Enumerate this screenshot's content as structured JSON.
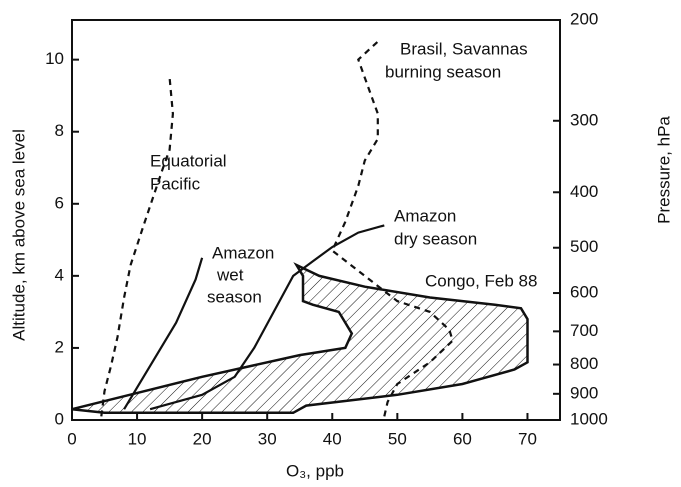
{
  "chart_data": {
    "type": "line",
    "xlabel": "O₃,  ppb",
    "ylabel": "Altitude,  km above sea level",
    "y2label": "Pressure,  hPa",
    "xlim": [
      0,
      75
    ],
    "xticks": [
      0,
      10,
      20,
      30,
      40,
      50,
      60,
      70
    ],
    "ylim": [
      0,
      11.1
    ],
    "yticks": [
      0,
      2,
      4,
      6,
      8,
      10
    ],
    "y2lim": [
      1000,
      200
    ],
    "y2scale": "log",
    "y2ticks": [
      200,
      300,
      400,
      500,
      600,
      700,
      800,
      900,
      1000
    ],
    "series": [
      {
        "label": [
          "Equatorial",
          "Pacific"
        ],
        "style": "dashed",
        "color": "#111",
        "x": [
          4.5,
          5,
          6,
          7,
          8,
          9,
          11,
          12.5,
          14,
          15,
          15.5,
          15,
          14.5
        ],
        "y": [
          0.1,
          0.8,
          1.5,
          2.3,
          3.4,
          4.3,
          5.4,
          6.2,
          7.0,
          7.5,
          8.5,
          9.5,
          9.5
        ]
      },
      {
        "label": [
          "Brasil, Savannas",
          "burning season"
        ],
        "style": "dashed",
        "color": "#111",
        "x": [
          48,
          48.5,
          50,
          55,
          58.5,
          58,
          55,
          50,
          45,
          40,
          42,
          44,
          45,
          47,
          47,
          46,
          45,
          44,
          47
        ],
        "y": [
          0.1,
          0.5,
          1.0,
          1.6,
          2.2,
          2.5,
          3.0,
          3.3,
          4.0,
          4.7,
          5.5,
          6.5,
          7.2,
          7.8,
          8.5,
          9.0,
          9.5,
          10.0,
          10.5
        ]
      },
      {
        "label": [
          "Amazon",
          "wet",
          "season"
        ],
        "style": "solid",
        "color": "#111",
        "x": [
          8,
          12,
          16,
          19,
          20
        ],
        "y": [
          0.3,
          1.5,
          2.7,
          3.9,
          4.5
        ]
      },
      {
        "label": [
          "Amazon",
          "dry season"
        ],
        "style": "solid",
        "color": "#111",
        "x": [
          12,
          20,
          25,
          28,
          31,
          34,
          37,
          40,
          44,
          48
        ],
        "y": [
          0.3,
          0.7,
          1.2,
          2.0,
          3.0,
          4.0,
          4.4,
          4.8,
          5.2,
          5.4
        ]
      },
      {
        "label": [
          "Congo, Feb 88"
        ],
        "style": "hatched",
        "color": "#111",
        "x": [
          0,
          20,
          35,
          42,
          43,
          41,
          37,
          35.5,
          35.5,
          34.5,
          38,
          45,
          55,
          65,
          69,
          70,
          70,
          68,
          60,
          50,
          36,
          34,
          5,
          0
        ],
        "y": [
          0.3,
          1.2,
          1.8,
          2.0,
          2.4,
          3.0,
          3.2,
          3.3,
          4.0,
          4.3,
          4.0,
          3.7,
          3.4,
          3.2,
          3.1,
          2.8,
          1.6,
          1.4,
          1.0,
          0.7,
          0.4,
          0.2,
          0.2,
          0.3
        ]
      }
    ]
  }
}
